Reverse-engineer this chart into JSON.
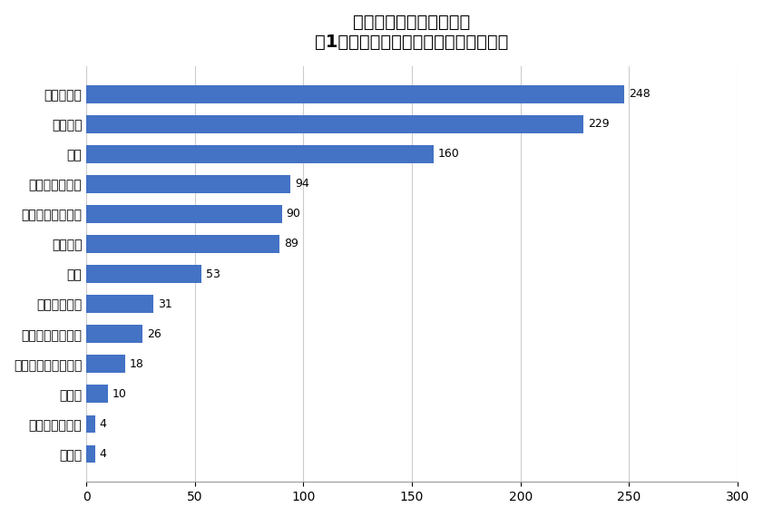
{
  "title": "住みかえを検討する際に\n「1番」重視するポイントは何ですか？",
  "categories": [
    "その他",
    "施工・管理会社",
    "築年数",
    "建物・土地の安全性",
    "室内・建物の設備",
    "ペット飼育可",
    "広さ",
    "資産価値",
    "駅からのアクセス",
    "間取り・部屋数",
    "立地",
    "周辺環境",
    "価格・家賃"
  ],
  "values": [
    4,
    4,
    10,
    18,
    26,
    31,
    53,
    89,
    90,
    94,
    160,
    229,
    248
  ],
  "bar_color": "#4472C4",
  "xlim": [
    0,
    300
  ],
  "xticks": [
    0,
    50,
    100,
    150,
    200,
    250,
    300
  ],
  "background_color": "#ffffff",
  "title_fontsize": 14,
  "label_fontsize": 10,
  "value_fontsize": 9
}
